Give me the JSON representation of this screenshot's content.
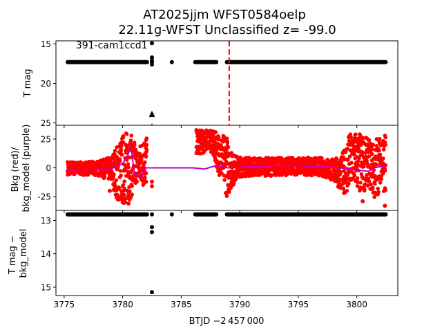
{
  "title_line1": "AT2025jjm  WFST0584oelp",
  "title_line2": "22.11g-WFST Unclassified z= -99.0",
  "xlabel": "BTJD −2 457 000",
  "colors": {
    "bkg": "#ff0000",
    "model": "#bf00bf",
    "points": "#000000",
    "marker": "#ff0000"
  },
  "chart_data": [
    {
      "type": "scatter",
      "panel": "top",
      "ylabel": "T mag",
      "ylim": [
        25.3,
        14.6
      ],
      "y_inverted": true,
      "yticks": [
        15,
        20,
        25
      ],
      "overlay_text": "391-cam1ccd1",
      "vline_x": 3789.1,
      "segments": [
        [
          3775.3,
          3782.1,
          17.3
        ],
        [
          3786.2,
          3788.0,
          17.3
        ],
        [
          3788.9,
          3802.5,
          17.3
        ]
      ],
      "points": [
        [
          3782.5,
          17.1
        ],
        [
          3782.5,
          17.3
        ],
        [
          3782.5,
          17.6
        ],
        [
          3782.5,
          16.7
        ],
        [
          3782.5,
          14.9
        ],
        [
          3784.2,
          17.3
        ]
      ],
      "upper_limits": [
        [
          3782.5,
          23.9
        ],
        [
          3782.5,
          24.0
        ],
        [
          3782.5,
          25.5
        ]
      ]
    },
    {
      "type": "line",
      "panel": "middle",
      "ylabel": "Bkg (red)/\nbkg_model (purple)",
      "ylim": [
        -37,
        37
      ],
      "yticks": [
        -25,
        0,
        25
      ],
      "bkg_envelope": [
        [
          3775.3,
          -6,
          6
        ],
        [
          3776.5,
          -6,
          5
        ],
        [
          3778.0,
          -7,
          6
        ],
        [
          3779.0,
          -12,
          10
        ],
        [
          3779.6,
          -30,
          22
        ],
        [
          3780.2,
          -33,
          33
        ],
        [
          3780.8,
          -25,
          28
        ],
        [
          3781.3,
          -10,
          16
        ],
        [
          3781.8,
          -18,
          28
        ],
        [
          3782.1,
          -5,
          30
        ],
        [
          3786.3,
          12,
          33
        ],
        [
          3786.9,
          12,
          33
        ],
        [
          3787.4,
          18,
          33
        ],
        [
          3788.9,
          -25,
          28
        ],
        [
          3789.3,
          -18,
          14
        ],
        [
          3789.8,
          -8,
          10
        ],
        [
          3791.0,
          -7,
          9
        ],
        [
          3793.0,
          -7,
          9
        ],
        [
          3795.0,
          -6,
          9
        ],
        [
          3797.0,
          -7,
          9
        ],
        [
          3798.0,
          -12,
          8
        ],
        [
          3798.7,
          -20,
          10
        ],
        [
          3799.2,
          -25,
          28
        ],
        [
          3799.8,
          -15,
          33
        ],
        [
          3800.3,
          -25,
          30
        ],
        [
          3801.0,
          -15,
          25
        ],
        [
          3801.6,
          -32,
          20
        ],
        [
          3802.1,
          -10,
          30
        ],
        [
          3802.5,
          -35,
          33
        ]
      ],
      "bkg_scatter": [
        [
          3778.9,
          -20
        ],
        [
          3779.3,
          -14
        ],
        [
          3779.5,
          -26
        ],
        [
          3780.0,
          -30
        ],
        [
          3780.5,
          -31
        ],
        [
          3781.0,
          20
        ],
        [
          3781.1,
          -13
        ],
        [
          3781.5,
          -8
        ],
        [
          3782.0,
          -12
        ],
        [
          3782.5,
          -12
        ],
        [
          3782.5,
          -16
        ],
        [
          3789.0,
          -15
        ],
        [
          3789.0,
          18
        ],
        [
          3800.5,
          -29
        ],
        [
          3801.7,
          25
        ],
        [
          3802.4,
          -33
        ],
        [
          3802.4,
          22
        ]
      ],
      "model": [
        [
          3775.3,
          -2
        ],
        [
          3777.0,
          -1.5
        ],
        [
          3779.0,
          -1
        ],
        [
          3780.0,
          4
        ],
        [
          3780.4,
          10
        ],
        [
          3780.7,
          18
        ],
        [
          3781.0,
          -4
        ],
        [
          3781.5,
          -8
        ],
        [
          3782.0,
          0
        ],
        [
          3782.5,
          0
        ],
        [
          3784.0,
          0
        ],
        [
          3786.0,
          0
        ],
        [
          3787.0,
          -1
        ],
        [
          3788.0,
          2
        ],
        [
          3789.0,
          0
        ],
        [
          3791.0,
          1
        ],
        [
          3793.0,
          2
        ],
        [
          3795.0,
          2
        ],
        [
          3797.0,
          1
        ],
        [
          3798.5,
          0
        ],
        [
          3799.5,
          -1
        ],
        [
          3800.0,
          -2
        ],
        [
          3801.0,
          -3
        ],
        [
          3801.5,
          0
        ],
        [
          3802.0,
          1
        ],
        [
          3802.5,
          1
        ]
      ]
    },
    {
      "type": "scatter",
      "panel": "bottom",
      "ylabel": "T mag −\nbkg_model",
      "ylim": [
        15.25,
        12.7
      ],
      "y_inverted": true,
      "yticks": [
        13,
        14,
        15
      ],
      "segments": [
        [
          3775.3,
          3782.1,
          12.82
        ],
        [
          3786.2,
          3788.0,
          12.82
        ],
        [
          3788.9,
          3802.5,
          12.82
        ]
      ],
      "points": [
        [
          3782.5,
          12.82
        ],
        [
          3782.5,
          13.2
        ],
        [
          3782.5,
          13.35
        ],
        [
          3782.5,
          15.15
        ],
        [
          3784.2,
          12.82
        ]
      ]
    }
  ],
  "x_axis": {
    "xlim": [
      3774.3,
      3803.5
    ],
    "xticks": [
      3775,
      3780,
      3785,
      3790,
      3795,
      3800
    ]
  }
}
